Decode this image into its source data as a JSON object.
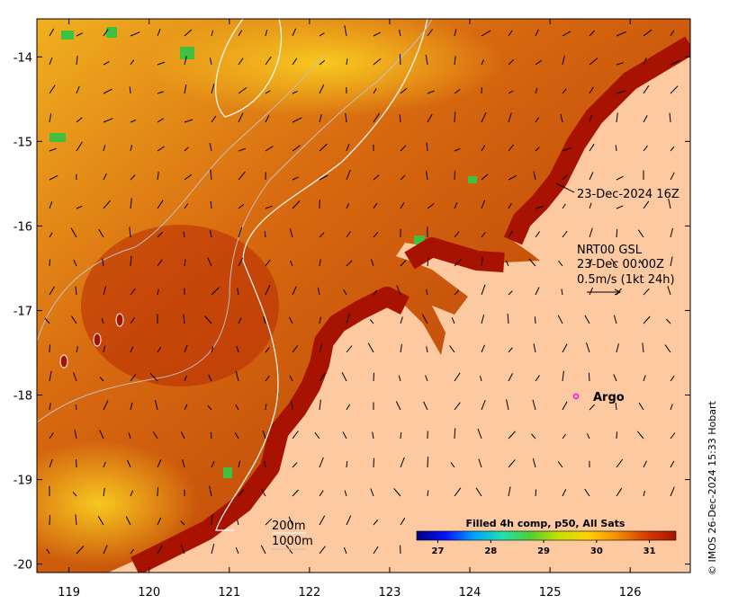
{
  "map": {
    "lon_range": [
      118.6,
      126.75
    ],
    "lat_range": [
      -20.1,
      -13.55
    ],
    "lon_ticks": [
      119,
      120,
      121,
      122,
      123,
      124,
      125,
      126
    ],
    "lat_ticks": [
      -14,
      -15,
      -16,
      -17,
      -18,
      -19,
      -20
    ],
    "land_color": "#fcc9a0",
    "warm_color": "#a81200",
    "grid": false
  },
  "annotations": {
    "timestamp": "23-Dec-2024 16Z",
    "current_source": "NRT00 GSL",
    "current_time": "23-Dec 00:00Z",
    "vector_scale": "0.5m/s (1kt 24h)",
    "argo_label": "Argo",
    "argo_marker_color": "#ff00ff",
    "contour_200": "200m",
    "contour_1000": "1000m"
  },
  "colorbar": {
    "title": "Filled 4h comp, p50, All Sats",
    "ticks": [
      "27",
      "28",
      "29",
      "30",
      "31"
    ],
    "tick_values": [
      27,
      28,
      29,
      30,
      31
    ],
    "range": [
      26.6,
      31.5
    ],
    "colors": [
      "#00007f",
      "#0010ff",
      "#00a0ff",
      "#20e0b0",
      "#50d030",
      "#c8e000",
      "#ffd000",
      "#f49000",
      "#d84000",
      "#a81200"
    ]
  },
  "credit": "© IMOS 26-Dec-2024 15:33 Hobart"
}
